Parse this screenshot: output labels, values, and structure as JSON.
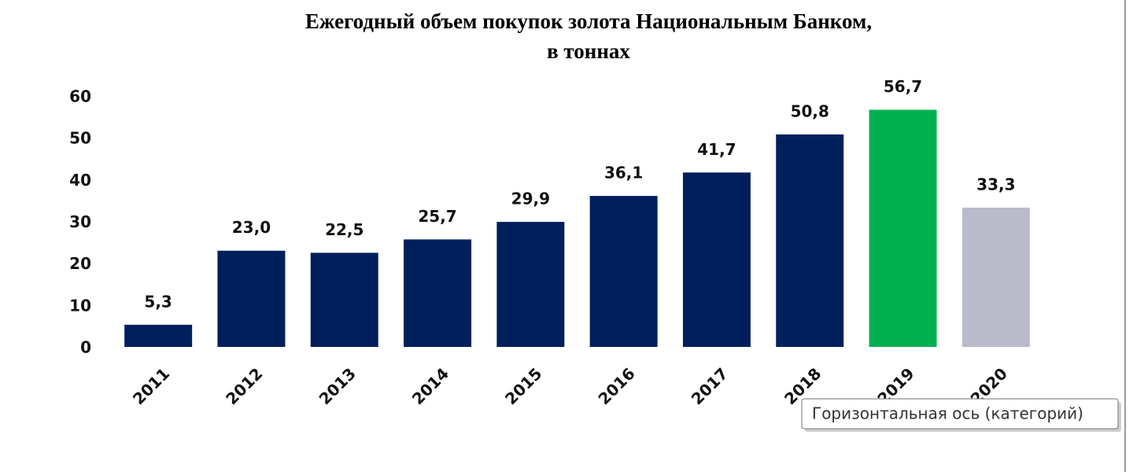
{
  "chart_data": {
    "type": "bar",
    "title": [
      "Ежегодный объем покупок золота Национальным Банком,",
      "в тоннах"
    ],
    "categories": [
      "2011",
      "2012",
      "2013",
      "2014",
      "2015",
      "2016",
      "2017",
      "2018",
      "2019",
      "2020"
    ],
    "values": [
      5.3,
      23.0,
      22.5,
      25.7,
      29.9,
      36.1,
      41.7,
      50.8,
      56.7,
      33.3
    ],
    "value_labels": [
      "5,3",
      "23,0",
      "22,5",
      "25,7",
      "29,9",
      "36,1",
      "41,7",
      "50,8",
      "56,7",
      "33,3"
    ],
    "colors": [
      "#001f5b",
      "#001f5b",
      "#001f5b",
      "#001f5b",
      "#001f5b",
      "#001f5b",
      "#001f5b",
      "#001f5b",
      "#00b050",
      "#b9bbcb"
    ],
    "ylim": [
      0,
      60
    ],
    "yticks": [
      0,
      10,
      20,
      30,
      40,
      50,
      60
    ],
    "grid": false
  },
  "tooltip": "Горизонтальная ось (категорий)"
}
